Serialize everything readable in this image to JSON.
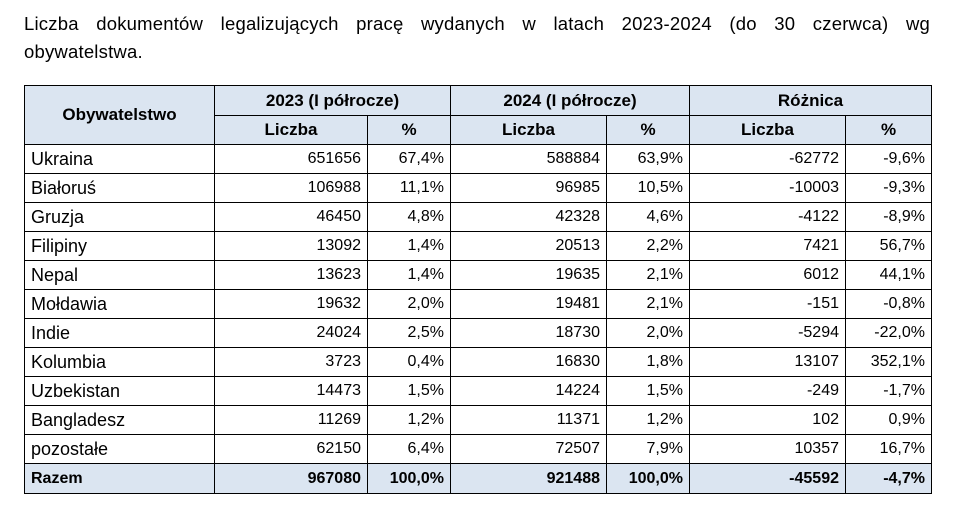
{
  "caption": {
    "line1": "Liczba dokumentów legalizujących pracę wydanych w latach 2023-2024 (do 30 czerwca) wg",
    "line2": "obywatelstwa."
  },
  "header": {
    "col_country": "Obywatelstwo",
    "group_2023": "2023 (I półrocze)",
    "group_2024": "2024 (I półrocze)",
    "group_diff": "Różnica",
    "sub_count": "Liczba",
    "sub_pct": "%"
  },
  "rows": [
    {
      "country": "Ukraina",
      "c2023": "651656",
      "p2023": "67,4%",
      "c2024": "588884",
      "p2024": "63,9%",
      "dcount": "-62772",
      "dpct": "-9,6%"
    },
    {
      "country": "Białoruś",
      "c2023": "106988",
      "p2023": "11,1%",
      "c2024": "96985",
      "p2024": "10,5%",
      "dcount": "-10003",
      "dpct": "-9,3%"
    },
    {
      "country": "Gruzja",
      "c2023": "46450",
      "p2023": "4,8%",
      "c2024": "42328",
      "p2024": "4,6%",
      "dcount": "-4122",
      "dpct": "-8,9%"
    },
    {
      "country": "Filipiny",
      "c2023": "13092",
      "p2023": "1,4%",
      "c2024": "20513",
      "p2024": "2,2%",
      "dcount": "7421",
      "dpct": "56,7%"
    },
    {
      "country": "Nepal",
      "c2023": "13623",
      "p2023": "1,4%",
      "c2024": "19635",
      "p2024": "2,1%",
      "dcount": "6012",
      "dpct": "44,1%"
    },
    {
      "country": "Mołdawia",
      "c2023": "19632",
      "p2023": "2,0%",
      "c2024": "19481",
      "p2024": "2,1%",
      "dcount": "-151",
      "dpct": "-0,8%"
    },
    {
      "country": "Indie",
      "c2023": "24024",
      "p2023": "2,5%",
      "c2024": "18730",
      "p2024": "2,0%",
      "dcount": "-5294",
      "dpct": "-22,0%"
    },
    {
      "country": "Kolumbia",
      "c2023": "3723",
      "p2023": "0,4%",
      "c2024": "16830",
      "p2024": "1,8%",
      "dcount": "13107",
      "dpct": "352,1%"
    },
    {
      "country": "Uzbekistan",
      "c2023": "14473",
      "p2023": "1,5%",
      "c2024": "14224",
      "p2024": "1,5%",
      "dcount": "-249",
      "dpct": "-1,7%"
    },
    {
      "country": "Bangladesz",
      "c2023": "11269",
      "p2023": "1,2%",
      "c2024": "11371",
      "p2024": "1,2%",
      "dcount": "102",
      "dpct": "0,9%"
    },
    {
      "country": "pozostałe",
      "c2023": "62150",
      "p2023": "6,4%",
      "c2024": "72507",
      "p2024": "7,9%",
      "dcount": "10357",
      "dpct": "16,7%"
    }
  ],
  "total": {
    "country": "Razem",
    "c2023": "967080",
    "p2023": "100,0%",
    "c2024": "921488",
    "p2024": "100,0%",
    "dcount": "-45592",
    "dpct": "-4,7%"
  },
  "colors": {
    "header_bg": "#dbe5f1",
    "border": "#000000"
  }
}
